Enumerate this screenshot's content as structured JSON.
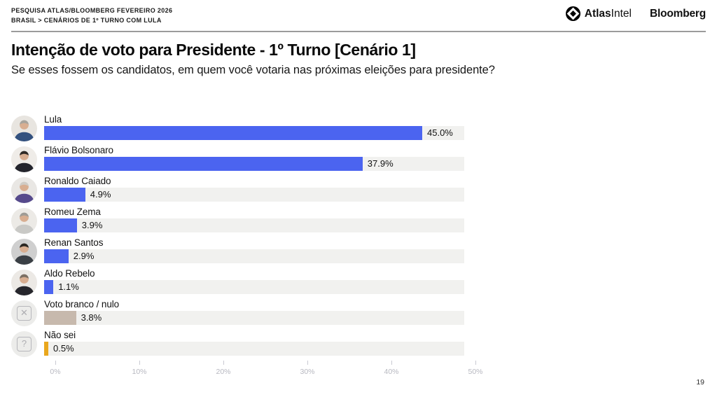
{
  "header": {
    "kicker_line1": "PESQUISA ATLAS/BLOOMBERG FEVEREIRO 2026",
    "kicker_line2": "BRASIL > CENÁRIOS DE 1º TURNO COM LULA",
    "logos": {
      "atlas": "Atlas",
      "intel": "Intel",
      "bloomberg": "Bloomberg"
    }
  },
  "title": "Intenção de voto para Presidente - 1º Turno [Cenário 1]",
  "subtitle": "Se esses fossem os candidatos, em quem você votaria nas próximas eleições para presidente?",
  "chart_data": {
    "type": "bar",
    "orientation": "horizontal",
    "title": "Intenção de voto para Presidente - 1º Turno [Cenário 1]",
    "categories": [
      "Lula",
      "Flávio Bolsonaro",
      "Ronaldo Caiado",
      "Romeu Zema",
      "Renan Santos",
      "Aldo Rebelo",
      "Voto branco / nulo",
      "Não sei"
    ],
    "values": [
      45.0,
      37.9,
      4.9,
      3.9,
      2.9,
      1.1,
      3.8,
      0.5
    ],
    "value_labels": [
      "45.0%",
      "37.9%",
      "4.9%",
      "3.9%",
      "2.9%",
      "1.1%",
      "3.8%",
      "0.5%"
    ],
    "bar_colors": [
      "#4B64F0",
      "#4B64F0",
      "#4B64F0",
      "#4B64F0",
      "#4B64F0",
      "#4B64F0",
      "#C7B9AD",
      "#E9A71D"
    ],
    "track_color": "#F1F1EF",
    "xlim": [
      0,
      50
    ],
    "axis_ticks": [
      "0%",
      "10%",
      "20%",
      "30%",
      "40%",
      "50%"
    ],
    "grid": false,
    "avatars": [
      {
        "icon": "lula-photo",
        "type": "person",
        "bg": "#e8e5e0",
        "skin": "#d8ae91",
        "hair": "#a8a49d",
        "suit": "#33517e"
      },
      {
        "icon": "flavio-bolsonaro-photo",
        "type": "person",
        "bg": "#efece8",
        "skin": "#d8ae91",
        "hair": "#2f2a26",
        "suit": "#23242c"
      },
      {
        "icon": "ronaldo-caiado-photo",
        "type": "person",
        "bg": "#e9e7e4",
        "skin": "#d8ae91",
        "hair": "#cfccc6",
        "suit": "#564a8c"
      },
      {
        "icon": "romeu-zema-photo",
        "type": "person",
        "bg": "#eceae6",
        "skin": "#d8ae91",
        "hair": "#9f9c96",
        "suit": "#c9c9c6"
      },
      {
        "icon": "renan-santos-photo",
        "type": "person",
        "bg": "#cfcfcf",
        "skin": "#d8ae91",
        "hair": "#2b2722",
        "suit": "#3a3f45"
      },
      {
        "icon": "aldo-rebelo-photo",
        "type": "person",
        "bg": "#ece9e5",
        "skin": "#d8ae91",
        "hair": "#7b6f63",
        "suit": "#26262c"
      },
      {
        "icon": "blank-null-vote-icon",
        "type": "glyph",
        "glyph": "✕"
      },
      {
        "icon": "dont-know-icon",
        "type": "glyph",
        "glyph": "?"
      }
    ]
  },
  "footer": {
    "page_number": "19"
  }
}
